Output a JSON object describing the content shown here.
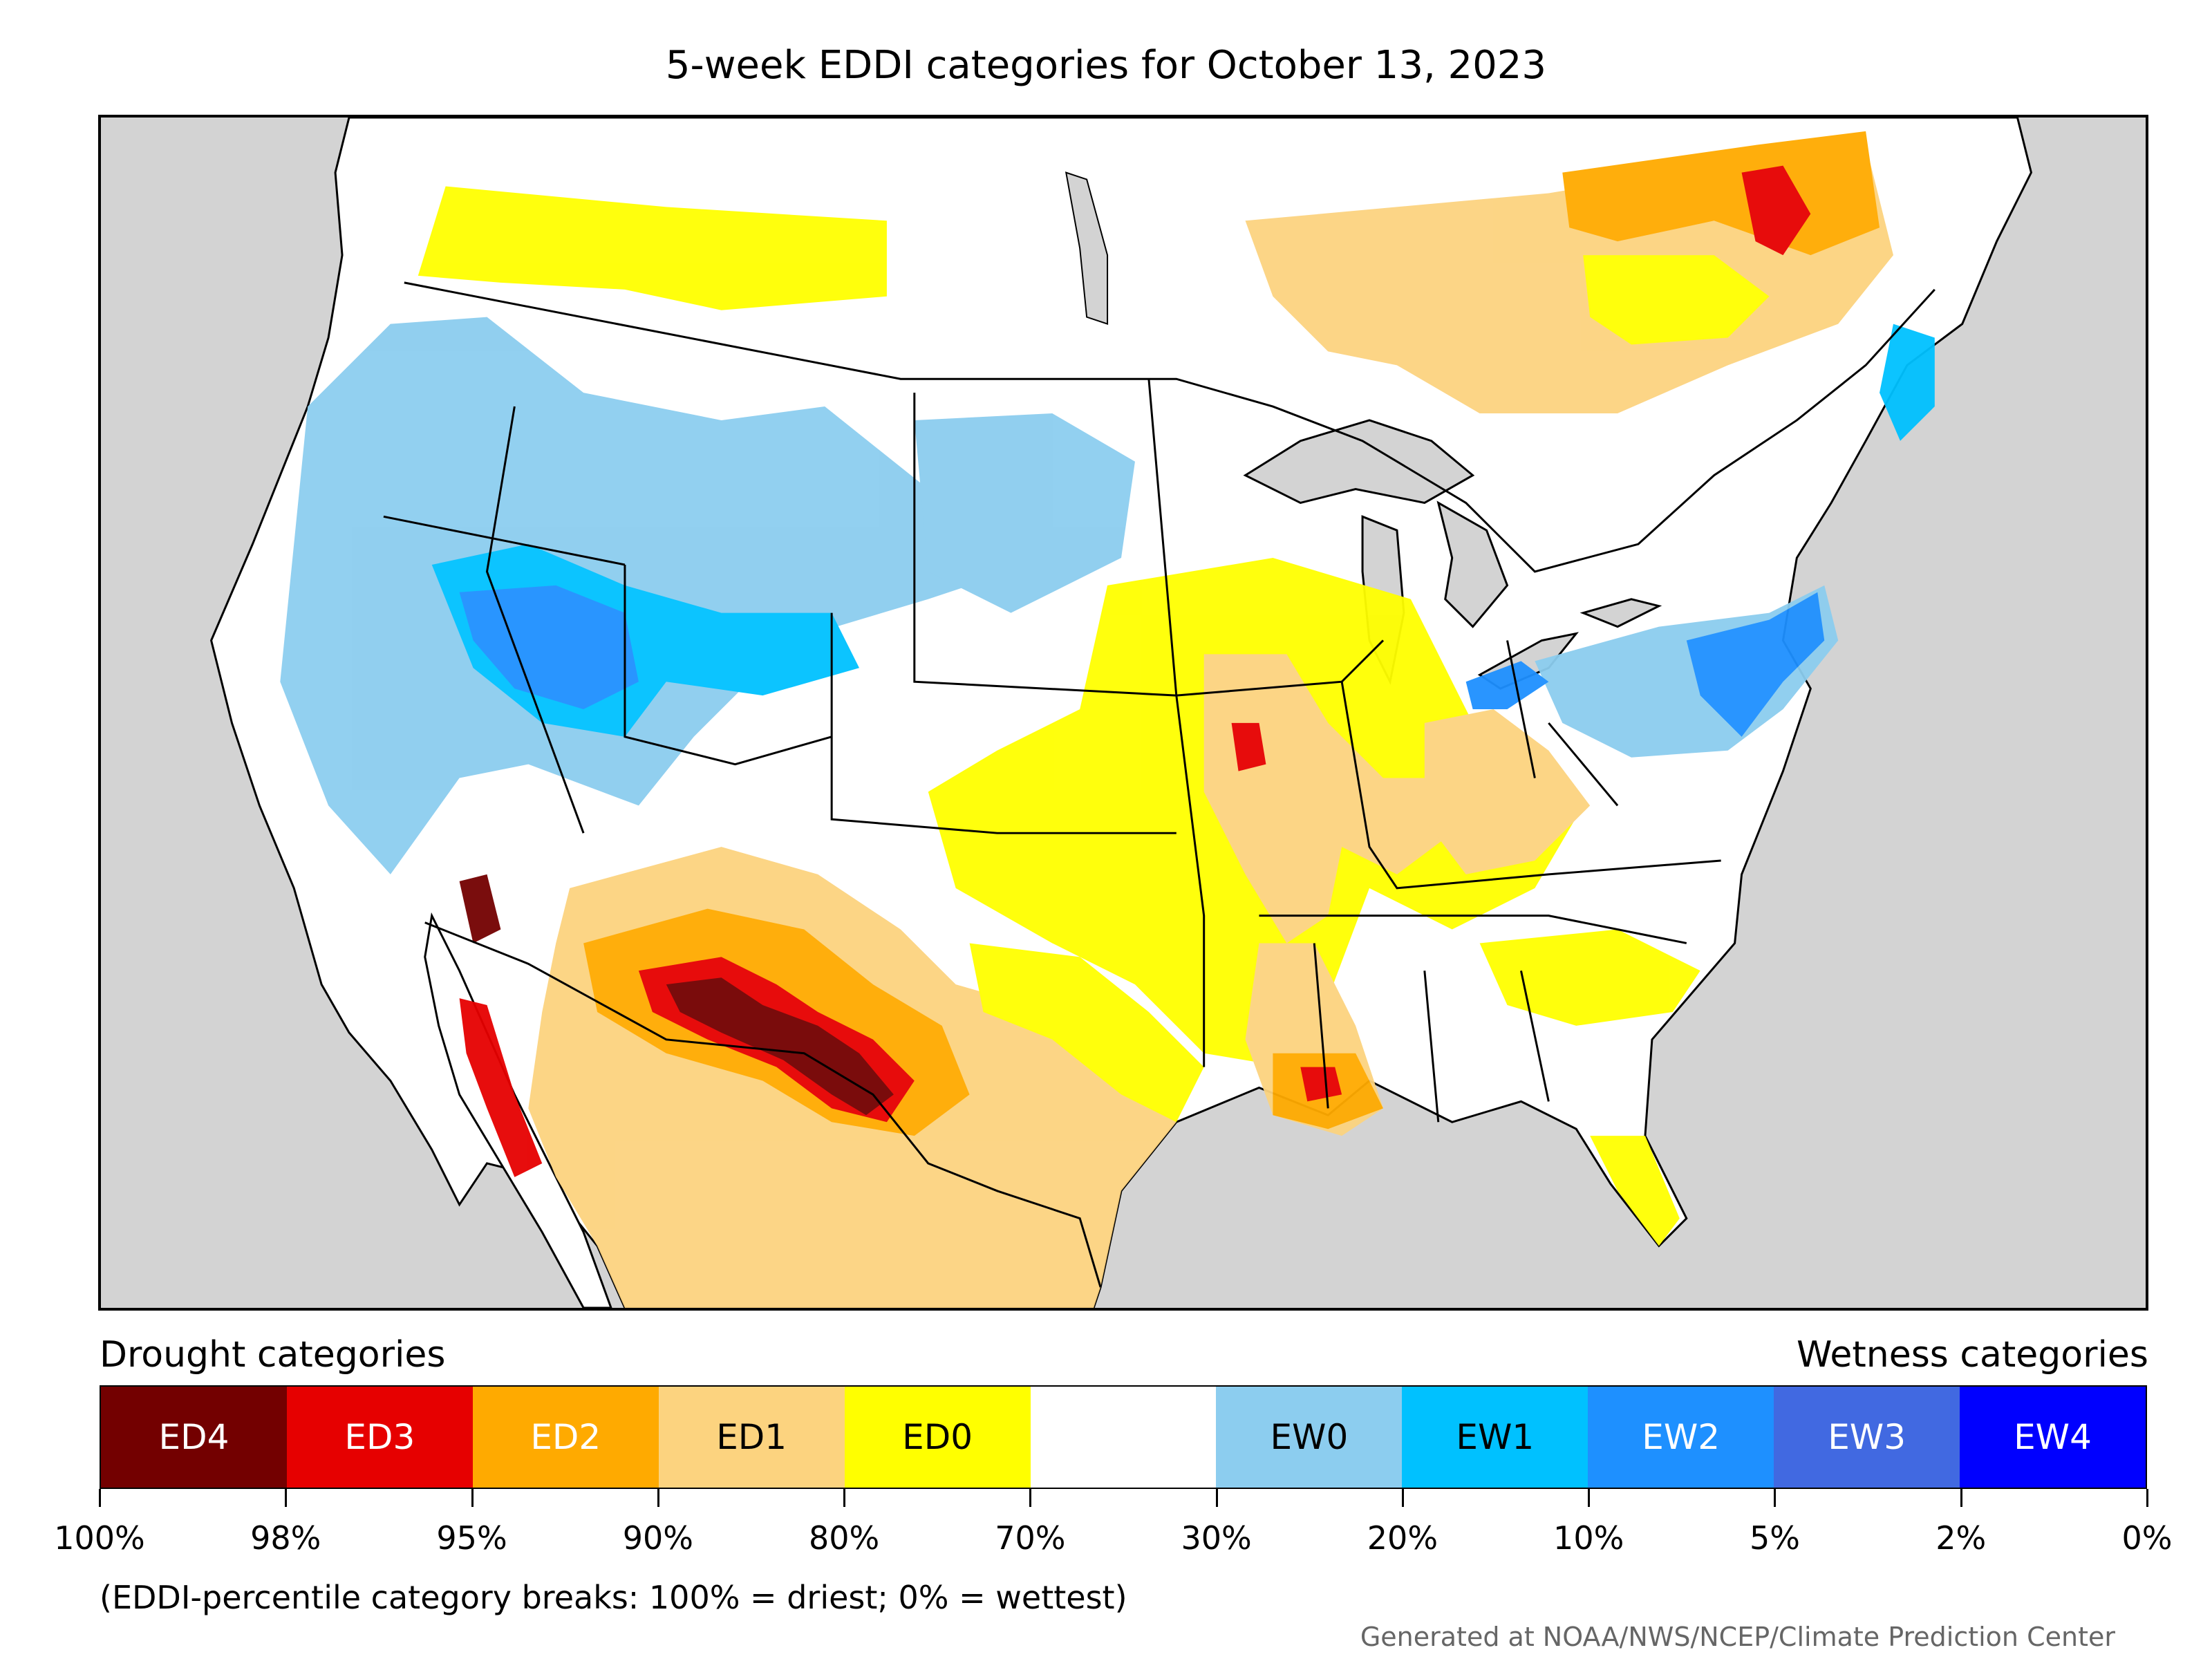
{
  "title": "5-week EDDI categories for October 13, 2023",
  "legend": {
    "drought_heading": "Drought categories",
    "wetness_heading": "Wetness categories",
    "categories": [
      {
        "label": "ED4",
        "color": "#730000",
        "text_color": "#ffffff"
      },
      {
        "label": "ED3",
        "color": "#e60000",
        "text_color": "#ffffff"
      },
      {
        "label": "ED2",
        "color": "#ffaa00",
        "text_color": "#ffffff"
      },
      {
        "label": "ED1",
        "color": "#fcd37f",
        "text_color": "#000000"
      },
      {
        "label": "ED0",
        "color": "#ffff00",
        "text_color": "#000000"
      },
      {
        "label": "",
        "color": "#ffffff",
        "text_color": "#000000"
      },
      {
        "label": "EW0",
        "color": "#8ccdef",
        "text_color": "#000000"
      },
      {
        "label": "EW1",
        "color": "#00c1ff",
        "text_color": "#000000"
      },
      {
        "label": "EW2",
        "color": "#1e90ff",
        "text_color": "#ffffff"
      },
      {
        "label": "EW3",
        "color": "#4169e1",
        "text_color": "#ffffff"
      },
      {
        "label": "EW4",
        "color": "#0000ff",
        "text_color": "#ffffff"
      }
    ],
    "tick_labels": [
      "100%",
      "98%",
      "95%",
      "90%",
      "80%",
      "70%",
      "30%",
      "20%",
      "10%",
      "5%",
      "2%",
      "0%"
    ],
    "note": "(EDDI-percentile category breaks: 100% = driest; 0% = wettest)"
  },
  "credit": "Generated at NOAA/NWS/NCEP/Climate Prediction Center",
  "map": {
    "background_color": "#d3d3d3",
    "land_color": "#ffffff",
    "border_color": "#000000"
  }
}
